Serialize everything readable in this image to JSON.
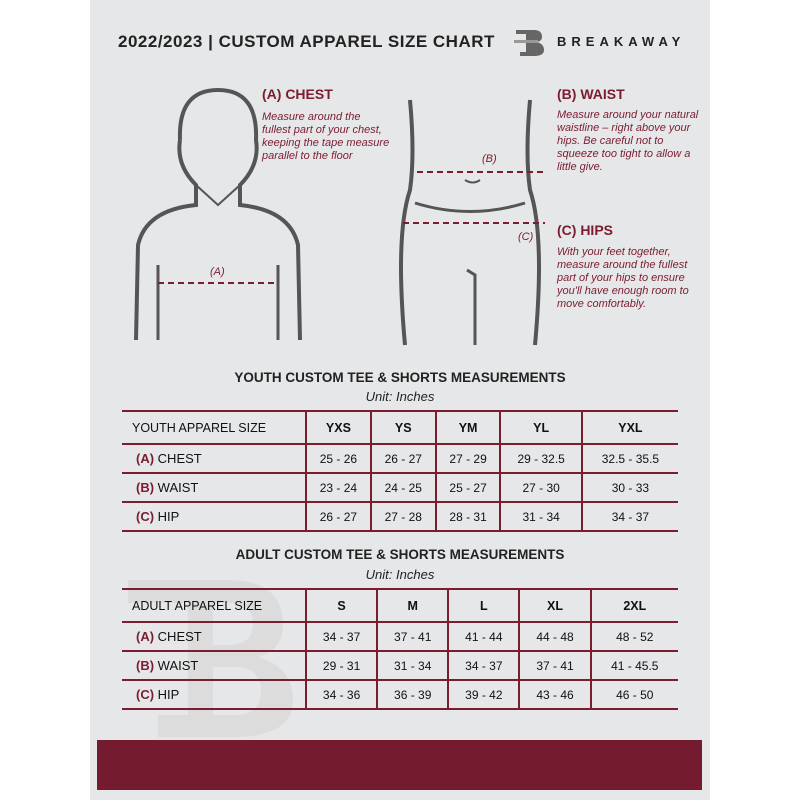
{
  "header": {
    "title": "2022/2023  |  CUSTOM APPAREL SIZE CHART",
    "brand": "BREAKAWAY",
    "logo_letter": "B"
  },
  "guides": {
    "chest": {
      "heading": "(A) CHEST",
      "marker": "(A)",
      "text": "Measure around the fullest part of your chest, keeping the tape measure parallel to the floor"
    },
    "waist": {
      "heading": "(B) WAIST",
      "marker": "(B)",
      "text": "Measure around your natural waistline – right above your hips. Be careful not to squeeze too tight to allow a little give."
    },
    "hips": {
      "heading": "(C) HIPS",
      "marker": "(C)",
      "text": "With your feet together, measure around the fullest part of your hips to ensure you'll have enough room to move comfortably."
    }
  },
  "youth": {
    "title": "YOUTH CUSTOM TEE & SHORTS MEASUREMENTS",
    "unit": "Unit: Inches",
    "size_label": "YOUTH APPAREL SIZE",
    "sizes": [
      "YXS",
      "YS",
      "YM",
      "YL",
      "YXL"
    ],
    "rows": [
      {
        "code": "(A)",
        "name": "CHEST",
        "values": [
          "25 - 26",
          "26 - 27",
          "27 - 29",
          "29 - 32.5",
          "32.5 - 35.5"
        ]
      },
      {
        "code": "(B)",
        "name": "WAIST",
        "values": [
          "23 - 24",
          "24 - 25",
          "25 - 27",
          "27 - 30",
          "30 - 33"
        ]
      },
      {
        "code": "(C)",
        "name": "HIP",
        "values": [
          "26 - 27",
          "27 - 28",
          "28 - 31",
          "31 - 34",
          "34 - 37"
        ]
      }
    ]
  },
  "adult": {
    "title": "ADULT CUSTOM TEE & SHORTS MEASUREMENTS",
    "unit": "Unit: Inches",
    "size_label": "ADULT APPAREL SIZE",
    "sizes": [
      "S",
      "M",
      "L",
      "XL",
      "2XL"
    ],
    "rows": [
      {
        "code": "(A)",
        "name": "CHEST",
        "values": [
          "34 - 37",
          "37 - 41",
          "41 - 44",
          "44 - 48",
          "48 - 52"
        ]
      },
      {
        "code": "(B)",
        "name": "WAIST",
        "values": [
          "29 - 31",
          "31 - 34",
          "34 - 37",
          "37 - 41",
          "41 - 45.5"
        ]
      },
      {
        "code": "(C)",
        "name": "HIP",
        "values": [
          "34 - 36",
          "36 - 39",
          "39 - 42",
          "43 - 46",
          "46 - 50"
        ]
      }
    ]
  },
  "colors": {
    "accent": "#741b30",
    "background": "#e6e7e8"
  }
}
